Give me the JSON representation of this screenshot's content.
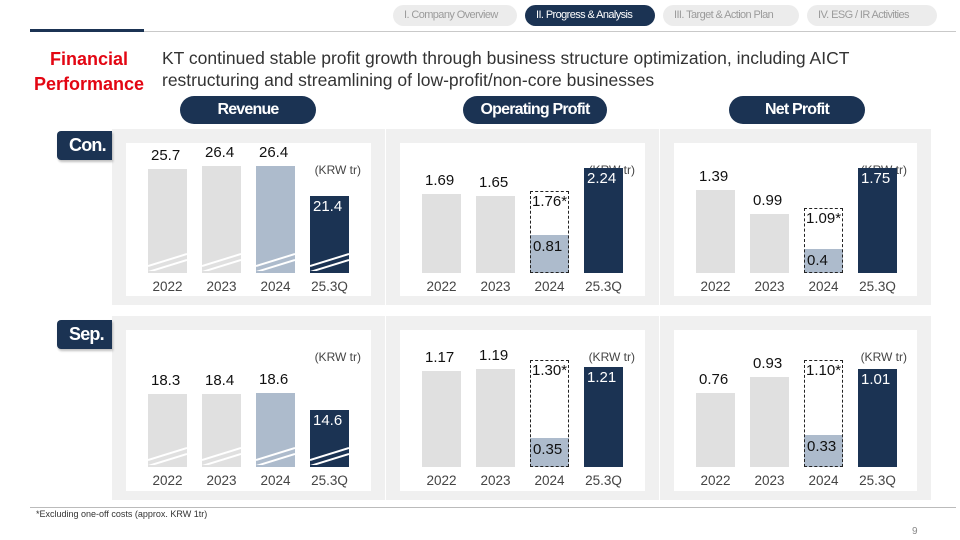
{
  "tabs": [
    {
      "label": "I. Company Overview",
      "active": false
    },
    {
      "label": "II. Progress & Analysis",
      "active": true
    },
    {
      "label": "III. Target & Action Plan",
      "active": false
    },
    {
      "label": "IV. ESG / IR Activities",
      "active": false
    }
  ],
  "header": {
    "section_line1": "Financial",
    "section_line2": "Performance",
    "headline": "KT continued stable profit growth through business structure optimization, including AICT restructuring and streamlining of low-profit/non-core businesses"
  },
  "metrics": [
    "Revenue",
    "Operating Profit",
    "Net Profit"
  ],
  "rows": {
    "consolidated": "Con.",
    "separate": "Sep."
  },
  "unit": "(KRW tr)",
  "years": [
    "2022",
    "2023",
    "2024",
    "25.3Q"
  ],
  "chart_data": [
    {
      "type": "bar",
      "row": "Con.",
      "metric": "Revenue",
      "unit": "KRW tr",
      "broken_axis": true,
      "categories": [
        "2022",
        "2023",
        "2024",
        "25.3Q"
      ],
      "values": [
        25.7,
        26.4,
        26.4,
        21.4
      ],
      "labels": [
        "25.7",
        "26.4",
        "26.4",
        "21.4"
      ]
    },
    {
      "type": "bar",
      "row": "Con.",
      "metric": "Operating Profit",
      "unit": "KRW tr",
      "categories": [
        "2022",
        "2023",
        "2024",
        "25.3Q"
      ],
      "values": [
        1.69,
        1.65,
        0.81,
        2.24
      ],
      "labels": [
        "1.69",
        "1.65",
        "0.81",
        "2.24"
      ],
      "excl_one_off": {
        "category": "2024",
        "value": 1.76,
        "label": "1.76*"
      }
    },
    {
      "type": "bar",
      "row": "Con.",
      "metric": "Net Profit",
      "unit": "KRW tr",
      "categories": [
        "2022",
        "2023",
        "2024",
        "25.3Q"
      ],
      "values": [
        1.39,
        0.99,
        0.4,
        1.75
      ],
      "labels": [
        "1.39",
        "0.99",
        "0.4",
        "1.75"
      ],
      "excl_one_off": {
        "category": "2024",
        "value": 1.09,
        "label": "1.09*"
      }
    },
    {
      "type": "bar",
      "row": "Sep.",
      "metric": "Revenue",
      "unit": "KRW tr",
      "broken_axis": true,
      "categories": [
        "2022",
        "2023",
        "2024",
        "25.3Q"
      ],
      "values": [
        18.3,
        18.4,
        18.6,
        14.6
      ],
      "labels": [
        "18.3",
        "18.4",
        "18.6",
        "14.6"
      ]
    },
    {
      "type": "bar",
      "row": "Sep.",
      "metric": "Operating Profit",
      "unit": "KRW tr",
      "categories": [
        "2022",
        "2023",
        "2024",
        "25.3Q"
      ],
      "values": [
        1.17,
        1.19,
        0.35,
        1.21
      ],
      "labels": [
        "1.17",
        "1.19",
        "0.35",
        "1.21"
      ],
      "excl_one_off": {
        "category": "2024",
        "value": 1.3,
        "label": "1.30*"
      }
    },
    {
      "type": "bar",
      "row": "Sep.",
      "metric": "Net Profit",
      "unit": "KRW tr",
      "categories": [
        "2022",
        "2023",
        "2024",
        "25.3Q"
      ],
      "values": [
        0.76,
        0.93,
        0.33,
        1.01
      ],
      "labels": [
        "0.76",
        "0.93",
        "0.33",
        "1.01"
      ],
      "excl_one_off": {
        "category": "2024",
        "value": 1.1,
        "label": "1.10*"
      }
    }
  ],
  "colors": {
    "navy": "#1b3353",
    "gray": "#e0e0e0",
    "light_blue": "#adbbcc",
    "red": "#e30613"
  },
  "footnote": "*Excluding one-off costs (approx. KRW 1tr)",
  "page_number": "9"
}
